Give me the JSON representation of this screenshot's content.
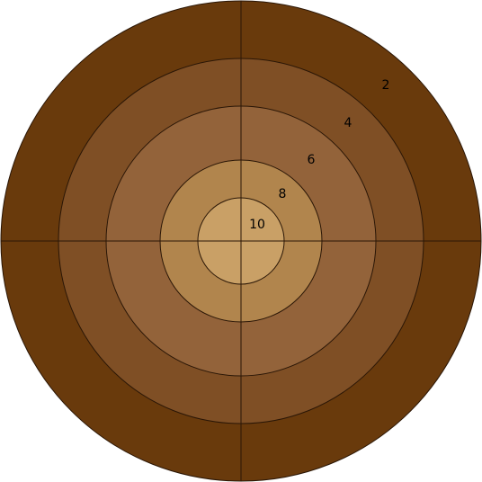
{
  "target": {
    "rings": [
      {
        "score": "2",
        "color": "#693a0c"
      },
      {
        "score": "4",
        "color": "#7f4f25"
      },
      {
        "score": "6",
        "color": "#93633a"
      },
      {
        "score": "8",
        "color": "#b1854d"
      },
      {
        "score": "10",
        "color": "#c9a066"
      }
    ],
    "line_color": "#2a1606"
  }
}
